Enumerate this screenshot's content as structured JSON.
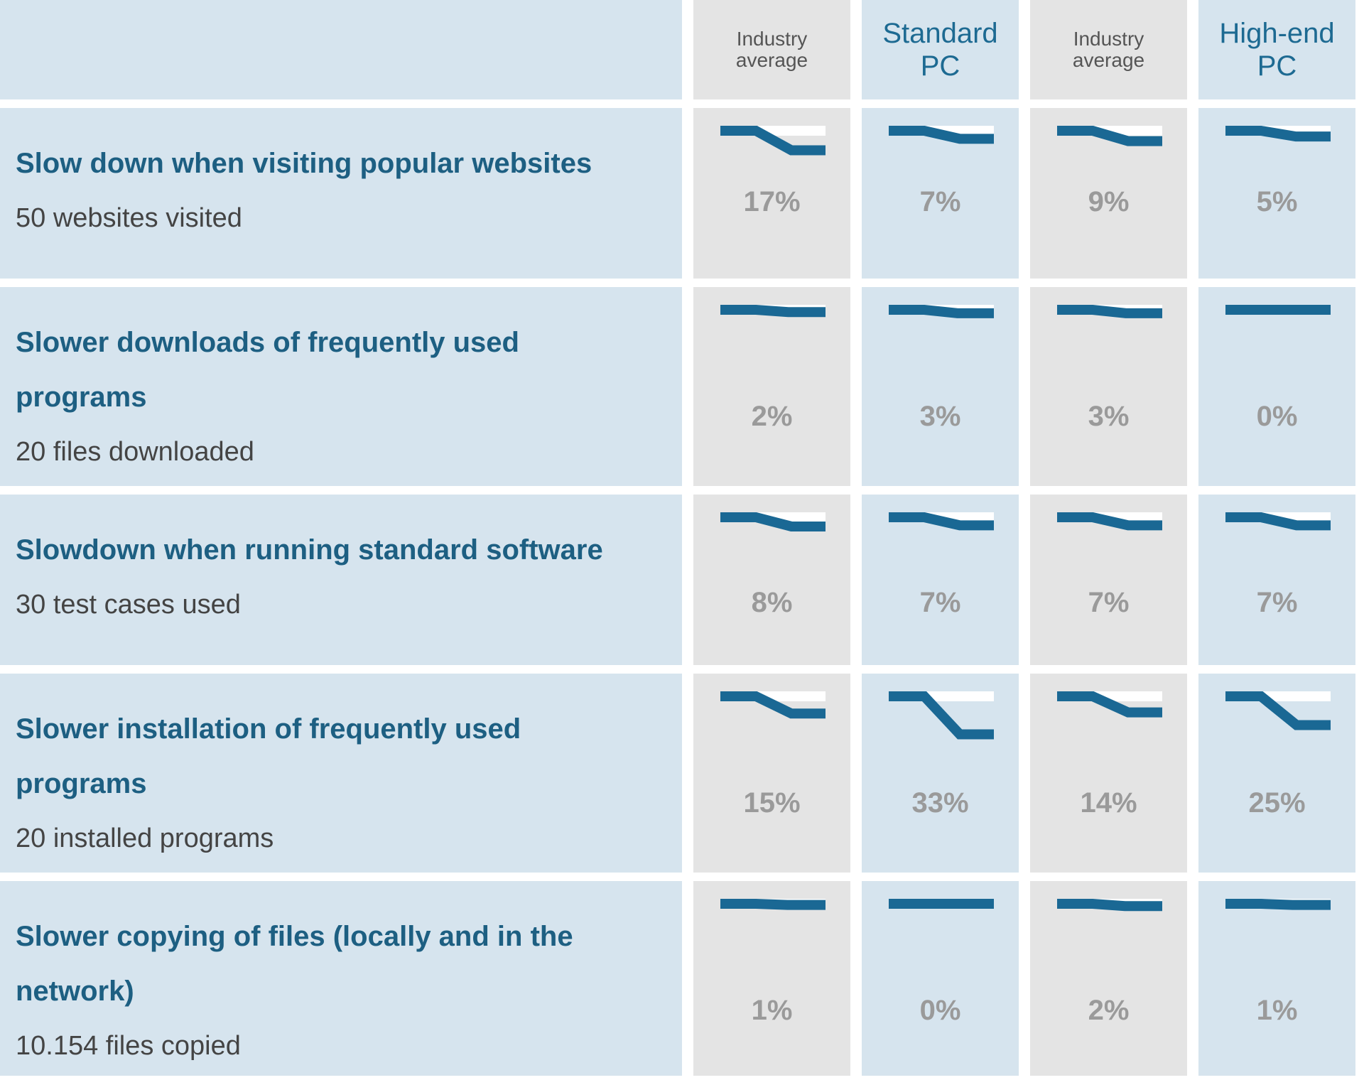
{
  "chart_data": {
    "type": "table",
    "columns": [
      {
        "label": "Industry\naverage",
        "style": "small",
        "shade": "gray"
      },
      {
        "label": "Standard\nPC",
        "style": "large",
        "shade": "blue"
      },
      {
        "label": "Industry\naverage",
        "style": "small",
        "shade": "gray"
      },
      {
        "label": "High-end\nPC",
        "style": "large",
        "shade": "blue"
      }
    ],
    "rows": [
      {
        "title": "Slow down when visiting popular websites",
        "subtitle": "50 websites visited",
        "values": [
          17,
          7,
          9,
          5
        ],
        "labels": [
          "17%",
          "7%",
          "9%",
          "5%"
        ]
      },
      {
        "title": "Slower downloads of frequently used programs",
        "subtitle": "20 files downloaded",
        "values": [
          2,
          3,
          3,
          0
        ],
        "labels": [
          "2%",
          "3%",
          "3%",
          "0%"
        ]
      },
      {
        "title": "Slowdown when running standard software",
        "subtitle": "30 test cases used",
        "values": [
          8,
          7,
          7,
          7
        ],
        "labels": [
          "8%",
          "7%",
          "7%",
          "7%"
        ]
      },
      {
        "title": "Slower installation of frequently used programs",
        "subtitle": "20 installed programs",
        "values": [
          15,
          33,
          14,
          25
        ],
        "labels": [
          "15%",
          "33%",
          "14%",
          "25%"
        ]
      },
      {
        "title": "Slower copying of files (locally and in the network)",
        "subtitle": "10.154 files copied",
        "values": [
          1,
          0,
          2,
          1
        ],
        "labels": [
          "1%",
          "0%",
          "2%",
          "1%"
        ]
      }
    ],
    "unit": "%",
    "colors": {
      "line": "#1a6894",
      "cell_blue": "#d6e4ee",
      "cell_gray": "#e4e4e4",
      "title": "#1d5f82",
      "percent": "#9a9a9a"
    }
  }
}
